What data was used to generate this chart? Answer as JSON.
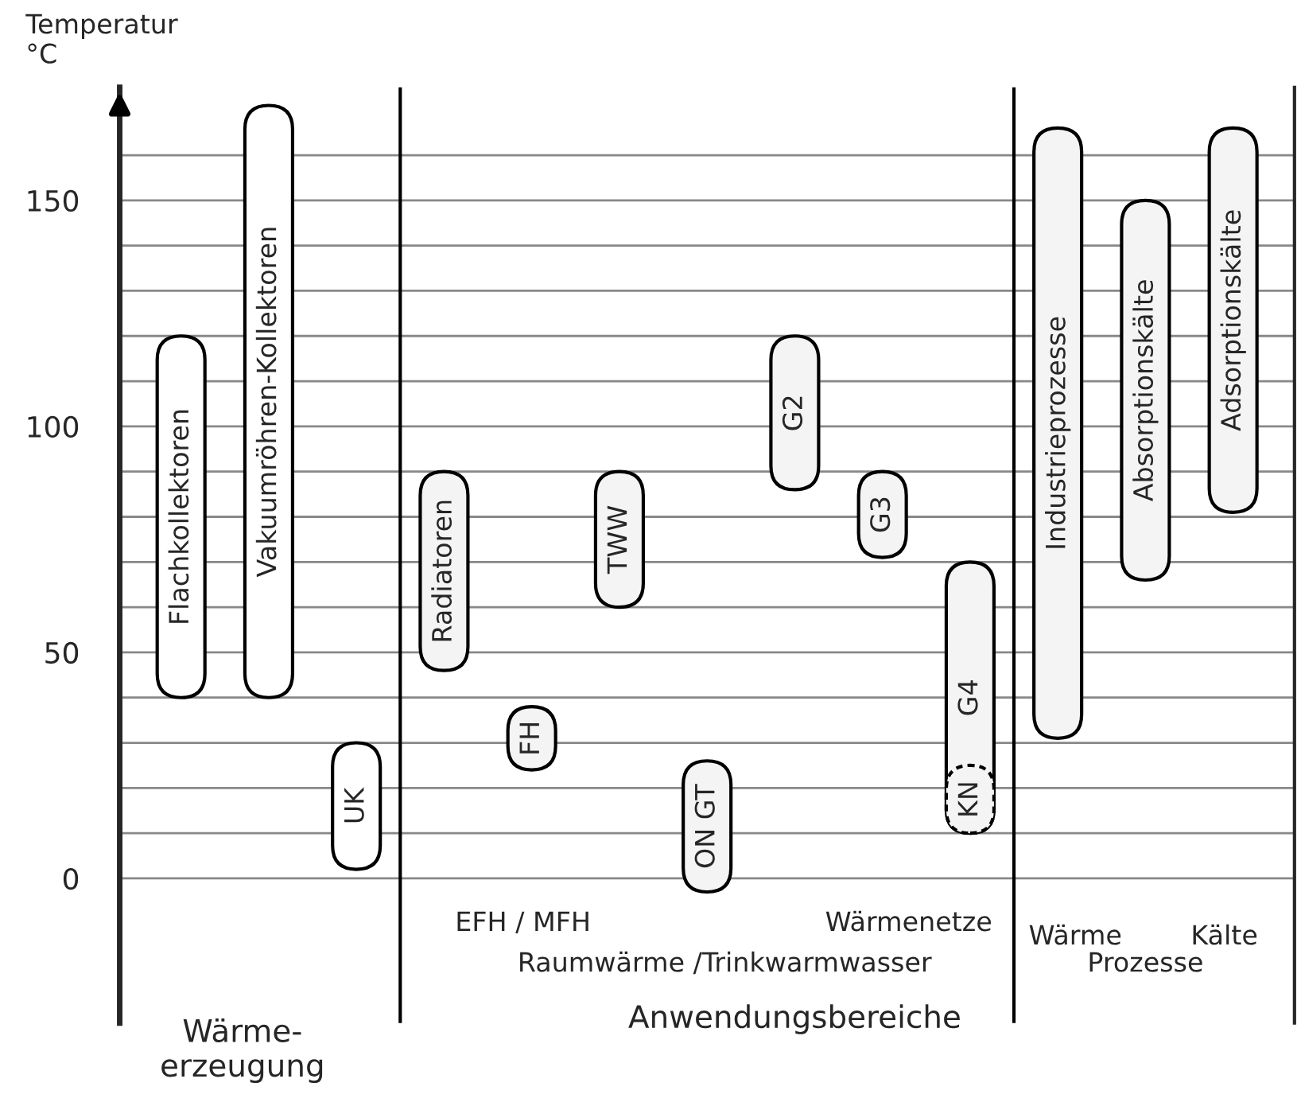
{
  "chart_data": {
    "type": "bar",
    "ylabel": "Temperatur\n°C",
    "categories": [
      "Flachkollektoren",
      "Vakuumröhren-Kollektoren",
      "UK",
      "Radiatoren",
      "FH",
      "TWW",
      "ON GT",
      "G2",
      "G3",
      "G4",
      "Industrieprozesse",
      "Absorptionskälte",
      "Adsorptionskälte"
    ],
    "series": [
      {
        "color": "#ffffff",
        "colors": [
          "#ffffff",
          "#ffffff",
          "#ffffff",
          "#f4f4f4",
          "#f4f4f4",
          "#f4f4f4",
          "#f4f4f4",
          "#f4f4f4",
          "#f4f4f4",
          "#f4f4f4",
          "#f4f4f4",
          "#f4f4f4",
          "#f4f4f4"
        ],
        "base": [
          40,
          40,
          2,
          46,
          24,
          60,
          -3,
          86,
          71,
          10,
          31,
          66,
          81
        ],
        "values": [
          80,
          131,
          28,
          44,
          14,
          30,
          29,
          34,
          19,
          60,
          135,
          84,
          85
        ]
      },
      {
        "name": "KN",
        "color": "#f4f4f4",
        "line_style": "dashed",
        "base": [
          null,
          null,
          null,
          null,
          null,
          null,
          null,
          null,
          null,
          10,
          null,
          null,
          null
        ],
        "values": [
          null,
          null,
          null,
          null,
          null,
          null,
          null,
          null,
          null,
          15,
          null,
          null,
          null
        ]
      }
    ],
    "ylim": [
      -32,
      175
    ],
    "yticks": [
      0,
      {
        "value": 10,
        "label": null
      },
      {
        "value": 20,
        "label": null
      },
      {
        "value": 30,
        "label": null
      },
      {
        "value": 40,
        "label": null
      },
      50,
      {
        "value": 60,
        "label": null
      },
      {
        "value": 70,
        "label": null
      },
      {
        "value": 80,
        "label": null
      },
      {
        "value": 90,
        "label": null
      },
      100,
      {
        "value": 110,
        "label": null
      },
      {
        "value": 120,
        "label": null
      },
      {
        "value": 130,
        "label": null
      },
      {
        "value": 140,
        "label": null
      },
      150,
      {
        "value": 160,
        "label": null
      }
    ],
    "grid": "y",
    "annotations": [
      "EFH / MFH",
      "Wärmenetze",
      "Raumwärme /Trinkwarmwasser",
      "Wärme",
      "Kälte",
      "Prozesse",
      "Wärme-\nerzeugung",
      "Anwendungsbereiche"
    ]
  }
}
